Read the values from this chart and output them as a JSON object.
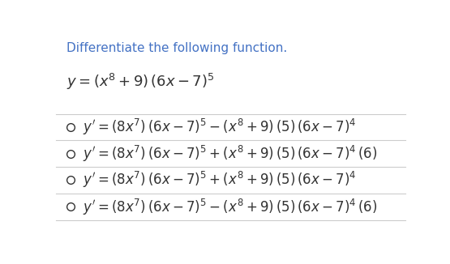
{
  "background_color": "#ffffff",
  "title_text": "Differentiate the following function.",
  "title_color": "#4472c4",
  "title_fontsize": 11,
  "function_text": "$y = (x^{8}+9)\\,(6x-7)^{5}$",
  "function_fontsize": 13,
  "options": [
    "$y' = (8x^{7})\\,(6x-7)^{5} - (x^{8}+9)\\,(5)\\,(6x-7)^{4}$",
    "$y' = (8x^{7})\\,(6x-7)^{5} + (x^{8}+9)\\,(5)\\,(6x-7)^{4}\\,(6)$",
    "$y' = (8x^{7})\\,(6x-7)^{5} + (x^{8}+9)\\,(5)\\,(6x-7)^{4}$",
    "$y' = (8x^{7})\\,(6x-7)^{5} - (x^{8}+9)\\,(5)\\,(6x-7)^{4}\\,(6)$"
  ],
  "option_fontsize": 12,
  "option_color": "#333333",
  "radio_color": "#333333",
  "line_color": "#cccccc",
  "fig_width": 5.55,
  "fig_height": 3.26,
  "dpi": 100
}
